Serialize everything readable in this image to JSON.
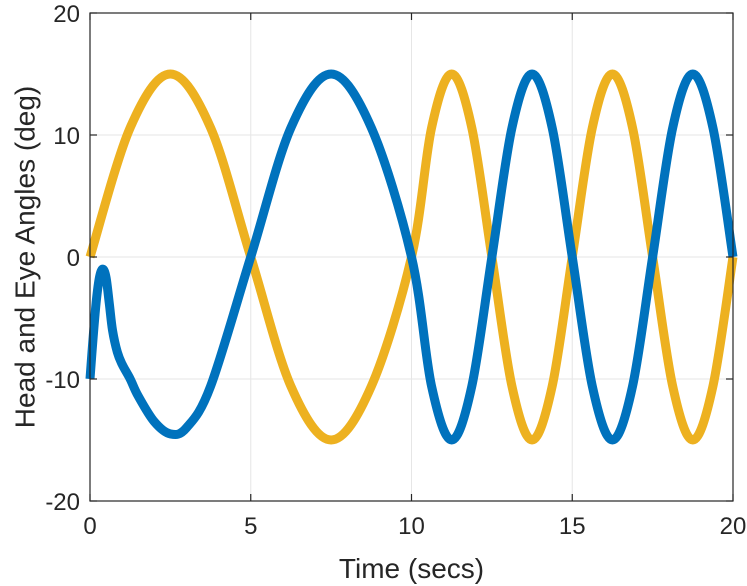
{
  "chart_data": {
    "type": "line",
    "title": "",
    "xlabel": "Time (secs)",
    "ylabel": "Head and Eye Angles (deg)",
    "xlim": [
      0,
      20
    ],
    "ylim": [
      -20,
      20
    ],
    "xticks": [
      0,
      5,
      10,
      15,
      20
    ],
    "yticks": [
      -20,
      -10,
      0,
      10,
      20
    ],
    "xtick_labels": [
      "0",
      "5",
      "10",
      "15",
      "20"
    ],
    "ytick_labels": [
      "-20",
      "-10",
      "0",
      "10",
      "20"
    ],
    "grid": true,
    "colors": {
      "head": "#edb120",
      "eye": "#0072bd",
      "axis": "#262626",
      "grid": "#e6e6e6"
    },
    "series": [
      {
        "color": "#edb120",
        "x": [
          0,
          1.25,
          2.5,
          3.75,
          5,
          6.25,
          7.5,
          8.75,
          10,
          10.625,
          11.25,
          11.875,
          12.5,
          13.125,
          13.75,
          14.375,
          15,
          15.625,
          16.25,
          16.875,
          17.5,
          18.125,
          18.75,
          19.375,
          20
        ],
        "y": [
          0,
          10.6,
          15,
          10.6,
          0,
          -10.6,
          -15,
          -10.6,
          0,
          10.6,
          15,
          10.6,
          0,
          -10.6,
          -15,
          -10.6,
          0,
          10.6,
          15,
          10.6,
          0,
          -10.6,
          -15,
          -10.6,
          0
        ]
      },
      {
        "color": "#0072bd",
        "x": [
          0,
          0.1,
          0.2,
          0.3,
          0.4,
          0.5,
          0.6,
          0.7,
          0.85,
          1.0,
          1.25,
          1.5,
          2.0,
          2.5,
          3.0,
          3.75,
          5,
          6.25,
          7.5,
          8.75,
          10,
          10.625,
          11.25,
          11.875,
          12.5,
          13.125,
          13.75,
          14.375,
          15,
          15.625,
          16.25,
          16.875,
          17.5,
          18.125,
          18.75,
          19.375,
          20
        ],
        "y": [
          -10,
          -6.5,
          -3.5,
          -1.6,
          -1.0,
          -1.7,
          -3.8,
          -6.0,
          -7.8,
          -8.8,
          -10.0,
          -11.4,
          -13.5,
          -14.5,
          -14.0,
          -10.6,
          0,
          10.6,
          15,
          10.6,
          0,
          -10.6,
          -15,
          -10.6,
          0,
          10.6,
          15,
          10.6,
          0,
          -10.6,
          -15,
          -10.6,
          0,
          10.6,
          15,
          10.6,
          0
        ]
      }
    ]
  }
}
